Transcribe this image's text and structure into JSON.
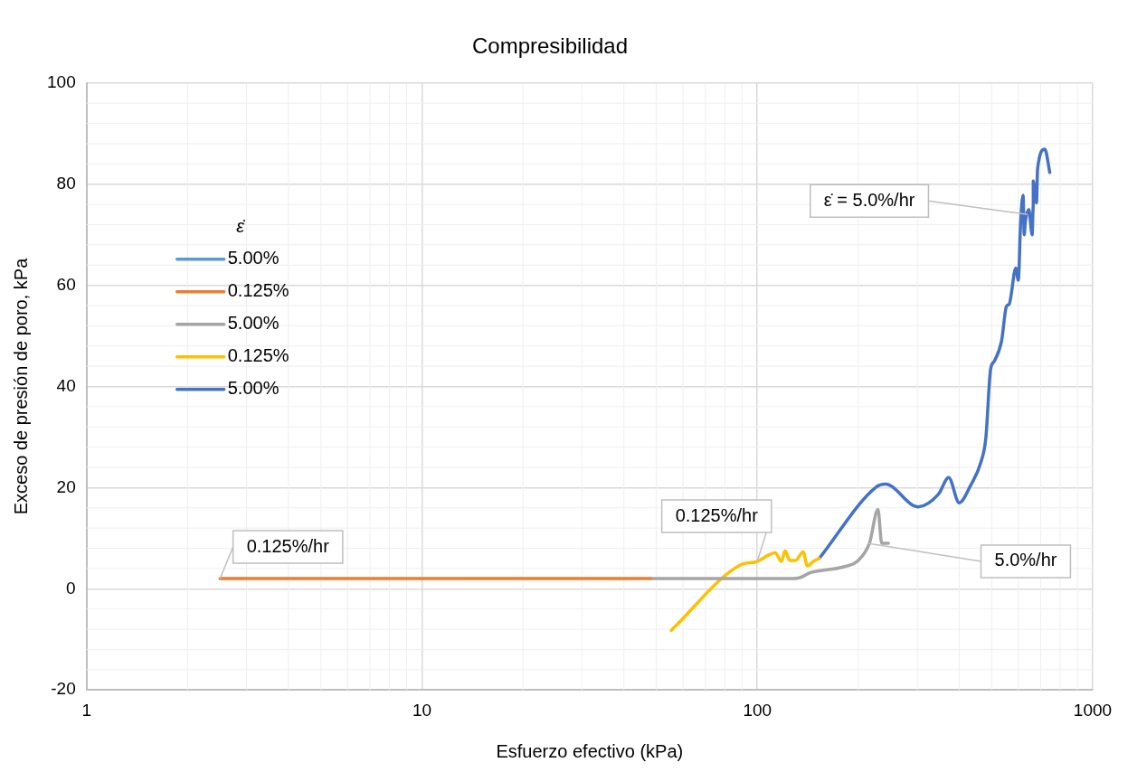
{
  "chart_data": {
    "type": "line",
    "title": "Compresibilidad",
    "xlabel": "Esfuerzo efectivo (kPa)",
    "ylabel": "Exceso de presión de poro, kPa",
    "legend_title": "ε̇",
    "log": "x",
    "grid": true,
    "legend": "left",
    "marker": "none",
    "line_style": "solid",
    "xlim": [
      1,
      1000
    ],
    "xticks": [
      1,
      10,
      100,
      1000
    ],
    "ylim": [
      -20,
      100
    ],
    "yticks": [
      -20,
      0,
      20,
      40,
      60,
      80,
      100
    ],
    "series": [
      {
        "name": "5.00%",
        "color": "#5b9bd5"
      },
      {
        "name": "0.125%",
        "color": "#ed7d31",
        "x": [
          2.5,
          5,
          10,
          20,
          30,
          48
        ],
        "values": [
          2,
          2,
          2,
          2,
          2,
          2
        ]
      },
      {
        "name": "5.00%",
        "color": "#a5a5a5",
        "x": [
          48,
          70,
          100,
          125,
          134,
          144,
          180,
          200,
          216,
          229,
          235,
          246
        ],
        "values": [
          2,
          2,
          2,
          2,
          2.2,
          3.2,
          4.3,
          5.6,
          9,
          15.7,
          9,
          9
        ]
      },
      {
        "name": "0.125%",
        "color": "#ffc000",
        "x": [
          55.4,
          89,
          100,
          107,
          113,
          118,
          121,
          125,
          130,
          137,
          141,
          147,
          153
        ],
        "values": [
          -8.2,
          4.7,
          5.4,
          6.5,
          7.1,
          5.4,
          7.5,
          5.6,
          5.6,
          7.3,
          4.5,
          5.4,
          6
        ]
      },
      {
        "name": "5.00%",
        "color": "#4472c4",
        "x": [
          153,
          226,
          241,
          301,
          347,
          372,
          400,
          433,
          464,
          480,
          496,
          509,
          535,
          553,
          564,
          590,
          600,
          610,
          620,
          625,
          630,
          645,
          660,
          665,
          665,
          680,
          685,
          720,
          745
        ],
        "values": [
          6,
          20.1,
          20.7,
          16.2,
          18.7,
          22,
          17,
          20.5,
          25,
          29.7,
          43.3,
          45,
          49,
          55.8,
          56.3,
          63.4,
          61,
          72.6,
          77.8,
          70,
          72.6,
          75,
          70,
          75.6,
          80.6,
          76.3,
          83,
          86.9,
          82.3
        ]
      }
    ],
    "annotations": [
      {
        "text": "0.125%/hr",
        "x": 2.5,
        "y": 2
      },
      {
        "text": "0.125%/hr",
        "x": 100,
        "y": 5.4
      },
      {
        "text": "5.0%/hr",
        "x": 213,
        "y": 9
      },
      {
        "text": "ε̇ = 5.0%/hr",
        "x": 640,
        "y": 74
      }
    ]
  }
}
